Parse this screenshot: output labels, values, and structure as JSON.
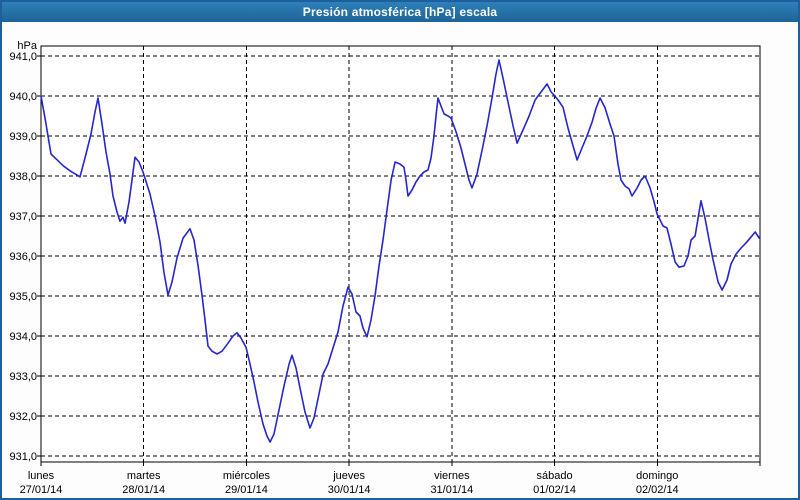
{
  "window": {
    "title": "Presión atmosférica [hPa] escala"
  },
  "chart": {
    "unit_label": "hPa",
    "y_tick_labels": [
      "941,0",
      "940,0",
      "939,0",
      "938,0",
      "937,0",
      "936,0",
      "935,0",
      "934,0",
      "933,0",
      "932,0",
      "931,0"
    ],
    "x_tick_labels": [
      {
        "weekday": "lunes",
        "date": "27/01/14"
      },
      {
        "weekday": "martes",
        "date": "28/01/14"
      },
      {
        "weekday": "miércoles",
        "date": "29/01/14"
      },
      {
        "weekday": "jueves",
        "date": "30/01/14"
      },
      {
        "weekday": "viernes",
        "date": "31/01/14"
      },
      {
        "weekday": "sábado",
        "date": "01/02/14"
      },
      {
        "weekday": "domingo",
        "date": "02/02/14"
      }
    ]
  },
  "colors": {
    "line": "#2626cc",
    "grid": "#000000",
    "plot_background": "#ffffff",
    "axis_text": "#000000",
    "titlebar_top": "#2e80b9",
    "titlebar_bottom": "#1d6398",
    "window_border": "#1e5f9e",
    "title_text": "#ffffff"
  },
  "chart_data": {
    "type": "line",
    "title": "Presión atmosférica [hPa] escala",
    "ylabel": "hPa",
    "ylim": [
      931.0,
      941.0
    ],
    "y_tick_step": 1.0,
    "xlim_days": [
      0,
      7
    ],
    "x_axis_note": "time axis, one unit = one day, from lunes 27/01/14 00:00 to domingo 02/02/14 24:00",
    "x_categories": [
      "lunes 27/01/14",
      "martes 28/01/14",
      "miércoles 29/01/14",
      "jueves 30/01/14",
      "viernes 31/01/14",
      "sábado 01/02/14",
      "domingo 02/02/14"
    ],
    "grid": "dashed-both-axes",
    "legend": "none",
    "series": [
      {
        "name": "Presión atmosférica [hPa]",
        "points": [
          [
            0.0,
            940.0
          ],
          [
            0.039,
            939.45
          ],
          [
            0.078,
            938.85
          ],
          [
            0.097,
            938.55
          ],
          [
            0.146,
            938.43
          ],
          [
            0.214,
            938.26
          ],
          [
            0.282,
            938.13
          ],
          [
            0.38,
            937.98
          ],
          [
            0.428,
            938.45
          ],
          [
            0.487,
            939.05
          ],
          [
            0.526,
            939.6
          ],
          [
            0.555,
            939.95
          ],
          [
            0.594,
            939.3
          ],
          [
            0.633,
            938.6
          ],
          [
            0.672,
            938.05
          ],
          [
            0.701,
            937.5
          ],
          [
            0.74,
            937.1
          ],
          [
            0.769,
            936.87
          ],
          [
            0.798,
            936.97
          ],
          [
            0.818,
            936.82
          ],
          [
            0.857,
            937.35
          ],
          [
            0.886,
            937.9
          ],
          [
            0.915,
            938.47
          ],
          [
            0.954,
            938.35
          ],
          [
            0.993,
            938.1
          ],
          [
            1.061,
            937.55
          ],
          [
            1.11,
            937.0
          ],
          [
            1.159,
            936.35
          ],
          [
            1.197,
            935.6
          ],
          [
            1.236,
            935.02
          ],
          [
            1.275,
            935.35
          ],
          [
            1.324,
            935.95
          ],
          [
            1.383,
            936.45
          ],
          [
            1.451,
            936.68
          ],
          [
            1.49,
            936.4
          ],
          [
            1.529,
            935.75
          ],
          [
            1.568,
            935.0
          ],
          [
            1.597,
            934.4
          ],
          [
            1.626,
            933.75
          ],
          [
            1.665,
            933.62
          ],
          [
            1.714,
            933.55
          ],
          [
            1.762,
            933.62
          ],
          [
            1.821,
            933.82
          ],
          [
            1.869,
            934.0
          ],
          [
            1.908,
            934.08
          ],
          [
            1.947,
            933.95
          ],
          [
            1.996,
            933.72
          ],
          [
            2.035,
            933.3
          ],
          [
            2.074,
            932.85
          ],
          [
            2.113,
            932.35
          ],
          [
            2.161,
            931.8
          ],
          [
            2.2,
            931.5
          ],
          [
            2.23,
            931.35
          ],
          [
            2.268,
            931.55
          ],
          [
            2.317,
            932.15
          ],
          [
            2.366,
            932.75
          ],
          [
            2.415,
            933.3
          ],
          [
            2.444,
            933.52
          ],
          [
            2.483,
            933.2
          ],
          [
            2.522,
            932.7
          ],
          [
            2.57,
            932.1
          ],
          [
            2.619,
            931.7
          ],
          [
            2.658,
            931.95
          ],
          [
            2.707,
            932.55
          ],
          [
            2.746,
            933.05
          ],
          [
            2.794,
            933.3
          ],
          [
            2.843,
            933.7
          ],
          [
            2.892,
            934.1
          ],
          [
            2.94,
            934.75
          ],
          [
            2.989,
            935.22
          ],
          [
            3.028,
            935.05
          ],
          [
            3.067,
            934.6
          ],
          [
            3.106,
            934.5
          ],
          [
            3.135,
            934.2
          ],
          [
            3.174,
            933.98
          ],
          [
            3.213,
            934.4
          ],
          [
            3.252,
            935.0
          ],
          [
            3.291,
            935.75
          ],
          [
            3.33,
            936.4
          ],
          [
            3.369,
            937.15
          ],
          [
            3.408,
            937.9
          ],
          [
            3.447,
            938.35
          ],
          [
            3.495,
            938.3
          ],
          [
            3.534,
            938.22
          ],
          [
            3.554,
            937.9
          ],
          [
            3.573,
            937.5
          ],
          [
            3.612,
            937.65
          ],
          [
            3.651,
            937.85
          ],
          [
            3.69,
            938.0
          ],
          [
            3.729,
            938.1
          ],
          [
            3.768,
            938.15
          ],
          [
            3.797,
            938.45
          ],
          [
            3.826,
            939.0
          ],
          [
            3.846,
            939.5
          ],
          [
            3.865,
            939.95
          ],
          [
            3.894,
            939.75
          ],
          [
            3.924,
            939.55
          ],
          [
            3.963,
            939.5
          ],
          [
            3.992,
            939.45
          ],
          [
            4.041,
            939.1
          ],
          [
            4.089,
            938.7
          ],
          [
            4.138,
            938.2
          ],
          [
            4.167,
            937.9
          ],
          [
            4.196,
            937.7
          ],
          [
            4.245,
            938.05
          ],
          [
            4.294,
            938.65
          ],
          [
            4.342,
            939.25
          ],
          [
            4.391,
            939.95
          ],
          [
            4.43,
            940.55
          ],
          [
            4.459,
            940.9
          ],
          [
            4.498,
            940.45
          ],
          [
            4.547,
            939.85
          ],
          [
            4.596,
            939.25
          ],
          [
            4.635,
            938.82
          ],
          [
            4.693,
            939.15
          ],
          [
            4.752,
            939.5
          ],
          [
            4.81,
            939.9
          ],
          [
            4.868,
            940.1
          ],
          [
            4.927,
            940.3
          ],
          [
            4.966,
            940.1
          ],
          [
            4.995,
            940.02
          ],
          [
            5.034,
            939.9
          ],
          [
            5.082,
            939.72
          ],
          [
            5.131,
            939.2
          ],
          [
            5.18,
            938.75
          ],
          [
            5.219,
            938.4
          ],
          [
            5.267,
            938.7
          ],
          [
            5.316,
            939.0
          ],
          [
            5.365,
            939.35
          ],
          [
            5.404,
            939.7
          ],
          [
            5.443,
            939.95
          ],
          [
            5.492,
            939.7
          ],
          [
            5.54,
            939.3
          ],
          [
            5.579,
            939.0
          ],
          [
            5.618,
            938.3
          ],
          [
            5.647,
            937.9
          ],
          [
            5.686,
            937.75
          ],
          [
            5.725,
            937.68
          ],
          [
            5.754,
            937.5
          ],
          [
            5.803,
            937.7
          ],
          [
            5.842,
            937.9
          ],
          [
            5.881,
            938.0
          ],
          [
            5.93,
            937.7
          ],
          [
            5.969,
            937.35
          ],
          [
            5.998,
            937.05
          ],
          [
            6.027,
            936.9
          ],
          [
            6.056,
            936.75
          ],
          [
            6.095,
            936.7
          ],
          [
            6.134,
            936.3
          ],
          [
            6.173,
            935.85
          ],
          [
            6.212,
            935.72
          ],
          [
            6.26,
            935.75
          ],
          [
            6.299,
            936.0
          ],
          [
            6.329,
            936.4
          ],
          [
            6.368,
            936.5
          ],
          [
            6.397,
            936.95
          ],
          [
            6.426,
            937.38
          ],
          [
            6.465,
            936.95
          ],
          [
            6.504,
            936.4
          ],
          [
            6.543,
            935.9
          ],
          [
            6.592,
            935.35
          ],
          [
            6.631,
            935.15
          ],
          [
            6.679,
            935.4
          ],
          [
            6.718,
            935.8
          ],
          [
            6.767,
            936.05
          ],
          [
            6.816,
            936.2
          ],
          [
            6.865,
            936.33
          ],
          [
            6.914,
            936.48
          ],
          [
            6.953,
            936.6
          ],
          [
            6.992,
            936.45
          ]
        ]
      }
    ]
  }
}
